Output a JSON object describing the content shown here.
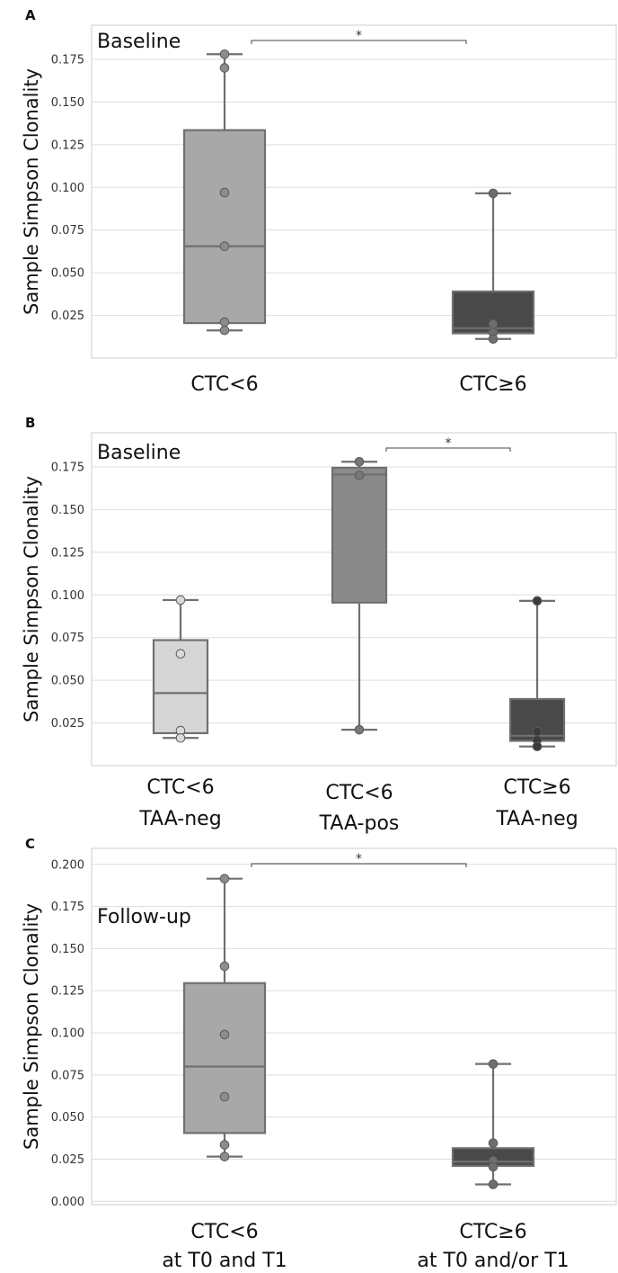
{
  "chart_data": [
    {
      "type": "box",
      "panel_label": "A",
      "title": "Baseline",
      "ylabel": "Sample Simpson Clonality",
      "ylim": [
        0.0,
        0.195
      ],
      "yticks": [
        "0.025",
        "0.050",
        "0.075",
        "0.100",
        "0.125",
        "0.150",
        "0.175"
      ],
      "grid": true,
      "categories": [
        {
          "lines": [
            "CTC<6"
          ],
          "color": "#a8a8a8",
          "point_color": "#8c8c8c",
          "q1": 0.0205,
          "median": 0.0655,
          "q3": 0.1335,
          "whisker_low": 0.0162,
          "whisker_high": 0.178,
          "points": [
            0.178,
            0.17,
            0.097,
            0.0655,
            0.021,
            0.0162
          ]
        },
        {
          "lines": [
            "CTC≥6"
          ],
          "color": "#494949",
          "point_color": "#6e6e6e",
          "q1": 0.0145,
          "median": 0.0175,
          "q3": 0.039,
          "whisker_low": 0.0112,
          "whisker_high": 0.0965,
          "points": [
            0.0965,
            0.02,
            0.015,
            0.0112
          ]
        }
      ],
      "significance": {
        "from": 0,
        "to": 1,
        "label": "*"
      }
    },
    {
      "type": "box",
      "panel_label": "B",
      "title": "Baseline",
      "ylabel": "Sample Simpson Clonality",
      "ylim": [
        0.0,
        0.195
      ],
      "yticks": [
        "0.025",
        "0.050",
        "0.075",
        "0.100",
        "0.125",
        "0.150",
        "0.175"
      ],
      "grid": true,
      "categories": [
        {
          "lines": [
            "CTC<6",
            "TAA-neg"
          ],
          "color": "#d6d6d6",
          "point_color": "#d9d9d9",
          "q1": 0.019,
          "median": 0.0425,
          "q3": 0.0735,
          "whisker_low": 0.0162,
          "whisker_high": 0.097,
          "points": [
            0.097,
            0.0655,
            0.0205,
            0.0162
          ]
        },
        {
          "lines": [
            "CTC<6",
            "TAA-pos"
          ],
          "color": "#8a8a8a",
          "point_color": "#777777",
          "q1": 0.0955,
          "median": 0.1705,
          "q3": 0.1745,
          "whisker_low": 0.021,
          "whisker_high": 0.178,
          "points": [
            0.178,
            0.17,
            0.021
          ]
        },
        {
          "lines": [
            "CTC≥6",
            "TAA-neg"
          ],
          "color": "#494949",
          "point_color": "#3a3a3a",
          "q1": 0.0145,
          "median": 0.0175,
          "q3": 0.039,
          "whisker_low": 0.0112,
          "whisker_high": 0.0965,
          "points": [
            0.0965,
            0.02,
            0.015,
            0.0112
          ]
        }
      ],
      "significance": {
        "from": 1,
        "to": 2,
        "label": "*"
      }
    },
    {
      "type": "box",
      "panel_label": "C",
      "title": "Follow-up",
      "ylabel": "Sample Simpson Clonality",
      "ylim": [
        -0.002,
        0.2095
      ],
      "yticks": [
        "0.000",
        "0.025",
        "0.050",
        "0.075",
        "0.100",
        "0.125",
        "0.150",
        "0.175",
        "0.200"
      ],
      "grid": true,
      "categories": [
        {
          "lines": [
            "CTC<6",
            "at T0 and T1"
          ],
          "color": "#a8a8a8",
          "point_color": "#8c8c8c",
          "q1": 0.0405,
          "median": 0.08,
          "q3": 0.1295,
          "whisker_low": 0.0265,
          "whisker_high": 0.1915,
          "points": [
            0.1915,
            0.1395,
            0.099,
            0.062,
            0.0335,
            0.0265
          ]
        },
        {
          "lines": [
            "CTC≥6",
            "at T0 and/or T1"
          ],
          "color": "#494949",
          "point_color": "#6e6e6e",
          "q1": 0.021,
          "median": 0.0235,
          "q3": 0.0315,
          "whisker_low": 0.01,
          "whisker_high": 0.0815,
          "points": [
            0.0815,
            0.0345,
            0.024,
            0.0205,
            0.01
          ]
        }
      ],
      "significance": {
        "from": 0,
        "to": 1,
        "label": "*"
      }
    }
  ]
}
